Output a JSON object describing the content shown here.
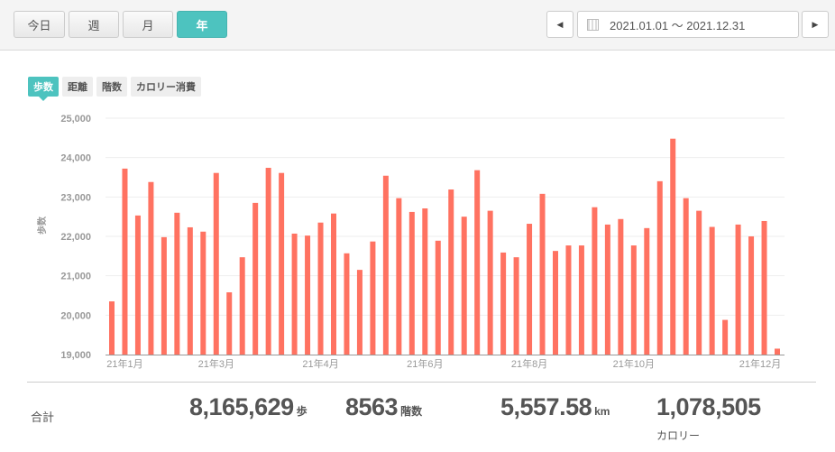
{
  "period_buttons": [
    {
      "label": "今日",
      "active": false
    },
    {
      "label": "週",
      "active": false
    },
    {
      "label": "月",
      "active": false
    },
    {
      "label": "年",
      "active": true
    }
  ],
  "date_range": {
    "prev_icon": "caret-left-icon",
    "calendar_icon": "calendar-icon",
    "value": "2021.01.01 〜 2021.12.31",
    "next_icon": "caret-right-icon"
  },
  "metric_tabs": [
    {
      "label": "歩数",
      "active": true
    },
    {
      "label": "距離",
      "active": false
    },
    {
      "label": "階数",
      "active": false
    },
    {
      "label": "カロリー消費",
      "active": false
    }
  ],
  "colors": {
    "accent": "#4dc3bf",
    "bar": "#ff7261"
  },
  "chart_data": {
    "type": "bar",
    "ylabel": "歩数",
    "ylim": [
      19000,
      25000
    ],
    "yticks": [
      "19,000",
      "20,000",
      "21,000",
      "22,000",
      "23,000",
      "24,000",
      "25,000"
    ],
    "grid": true,
    "xtick_labels": [
      {
        "index": 1,
        "label": "21年1月"
      },
      {
        "index": 8,
        "label": "21年3月"
      },
      {
        "index": 16,
        "label": "21年4月"
      },
      {
        "index": 24,
        "label": "21年6月"
      },
      {
        "index": 32,
        "label": "21年8月"
      },
      {
        "index": 40,
        "label": "21年10月"
      },
      {
        "index": 50,
        "label": "21年12月"
      }
    ],
    "values": [
      20350,
      23720,
      22530,
      23380,
      21980,
      22600,
      22230,
      22120,
      23610,
      20580,
      21470,
      22850,
      23740,
      23610,
      22070,
      22020,
      22350,
      22580,
      21570,
      21150,
      21870,
      23540,
      22970,
      22620,
      22710,
      21890,
      23190,
      22500,
      23680,
      22650,
      21590,
      21470,
      22320,
      23080,
      21630,
      21770,
      21770,
      22740,
      22300,
      22440,
      21770,
      22210,
      23400,
      24480,
      22970,
      22650,
      22240,
      19880,
      22300,
      22000,
      22390,
      19150
    ]
  },
  "summary": {
    "label": "合計",
    "steps": "8,165,629",
    "steps_unit": "歩",
    "floors": "8563",
    "floors_unit": "階数",
    "distance": "5,557.58",
    "distance_unit": "km",
    "calories": "1,078,505",
    "calories_unit": "カロリー"
  }
}
